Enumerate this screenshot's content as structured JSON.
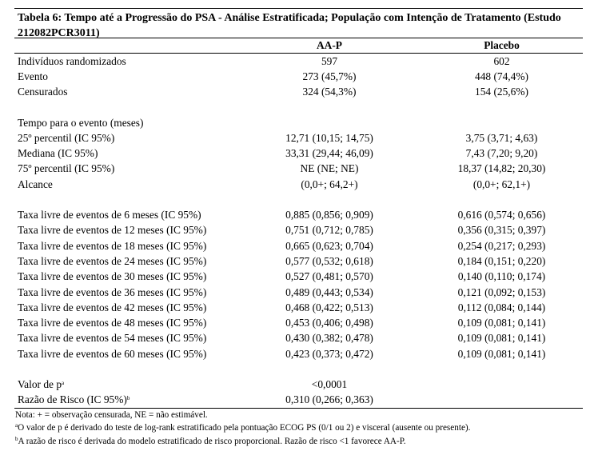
{
  "title": "Tabela 6: Tempo até a Progressão do PSA - Análise Estratificada; População com Intenção de Tratamento (Estudo 212082PCR3011)",
  "columns": [
    "",
    "AA-P",
    "Placebo"
  ],
  "group1": [
    {
      "label": "Indivíduos randomizados",
      "aap": "597",
      "placebo": "602"
    },
    {
      "label": "Evento",
      "aap": "273 (45,7%)",
      "placebo": "448 (74,4%)"
    },
    {
      "label": "Censurados",
      "aap": "324 (54,3%)",
      "placebo": "154 (25,6%)"
    }
  ],
  "group2": [
    {
      "label": "Tempo para o evento (meses)",
      "aap": "",
      "placebo": ""
    },
    {
      "label": "25º percentil (IC 95%)",
      "aap": "12,71 (10,15; 14,75)",
      "placebo": "3,75 (3,71; 4,63)"
    },
    {
      "label": "Mediana (IC 95%)",
      "aap": "33,31 (29,44; 46,09)",
      "placebo": "7,43 (7,20; 9,20)"
    },
    {
      "label": "75º percentil (IC 95%)",
      "aap": "NE (NE; NE)",
      "placebo": "18,37 (14,82; 20,30)"
    },
    {
      "label": "Alcance",
      "aap": "(0,0+; 64,2+)",
      "placebo": "(0,0+; 62,1+)"
    }
  ],
  "group3": [
    {
      "label": "Taxa livre de eventos de 6 meses (IC 95%)",
      "aap": "0,885 (0,856; 0,909)",
      "placebo": "0,616 (0,574; 0,656)"
    },
    {
      "label": "Taxa livre de eventos de 12 meses (IC 95%)",
      "aap": "0,751 (0,712; 0,785)",
      "placebo": "0,356 (0,315; 0,397)"
    },
    {
      "label": "Taxa livre de eventos de 18 meses (IC 95%)",
      "aap": "0,665 (0,623; 0,704)",
      "placebo": "0,254 (0,217; 0,293)"
    },
    {
      "label": "Taxa livre de eventos de 24 meses (IC 95%)",
      "aap": "0,577 (0,532; 0,618)",
      "placebo": "0,184 (0,151; 0,220)"
    },
    {
      "label": "Taxa livre de eventos de 30 meses (IC 95%)",
      "aap": "0,527 (0,481; 0,570)",
      "placebo": "0,140 (0,110; 0,174)"
    },
    {
      "label": "Taxa livre de eventos de 36 meses (IC 95%)",
      "aap": "0,489 (0,443; 0,534)",
      "placebo": "0,121 (0,092; 0,153)"
    },
    {
      "label": "Taxa livre de eventos de 42 meses (IC 95%)",
      "aap": "0,468 (0,422; 0,513)",
      "placebo": "0,112 (0,084; 0,144)"
    },
    {
      "label": "Taxa livre de eventos de 48 meses (IC 95%)",
      "aap": "0,453 (0,406; 0,498)",
      "placebo": "0,109 (0,081; 0,141)"
    },
    {
      "label": "Taxa livre de eventos de 54 meses (IC 95%)",
      "aap": "0,430 (0,382; 0,478)",
      "placebo": "0,109 (0,081; 0,141)"
    },
    {
      "label": "Taxa livre de eventos de 60 meses (IC 95%)",
      "aap": "0,423 (0,373; 0,472)",
      "placebo": "0,109 (0,081; 0,141)"
    }
  ],
  "group4": [
    {
      "label": "Valor de p",
      "sup": "a",
      "aap": "<0,0001",
      "placebo": ""
    },
    {
      "label": "Razão de Risco (IC 95%)",
      "sup": "b",
      "aap": "0,310 (0,266; 0,363)",
      "placebo": ""
    }
  ],
  "notes": {
    "note": "Nota: + = observação censurada, NE = não estimável.",
    "a_mark": "a",
    "a_text": "O valor de p é derivado do teste de log-rank estratificado pela pontuação ECOG PS (0/1 ou 2) e visceral (ausente ou presente).",
    "b_mark": "b",
    "b_text": "A razão de risco é derivada do modelo estratificado de risco proporcional. Razão de risco <1 favorece AA-P."
  }
}
